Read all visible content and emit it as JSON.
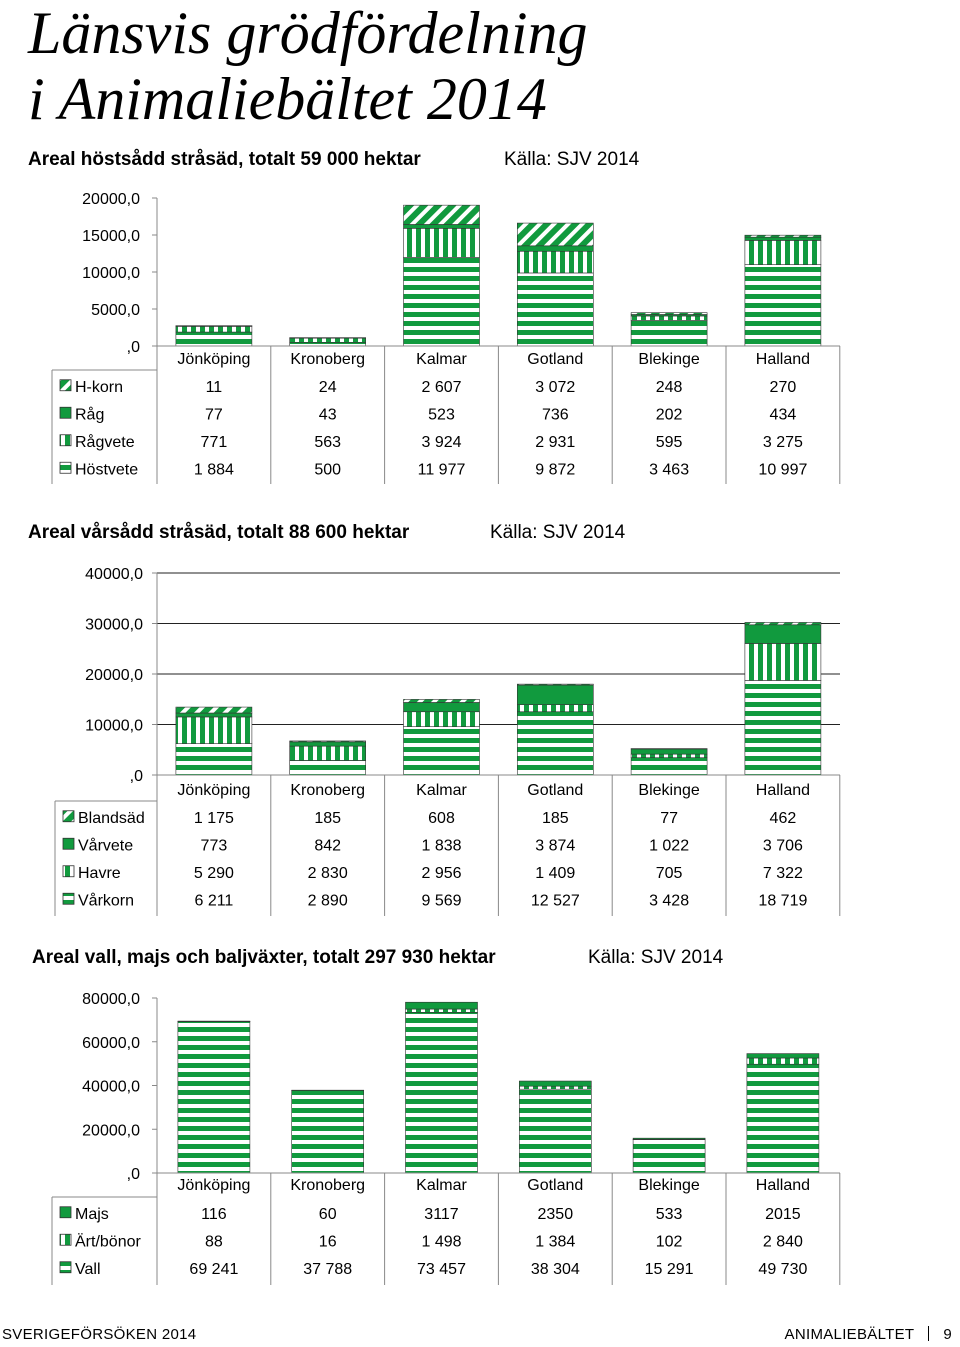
{
  "page": {
    "title_line1": "Länsvis grödfördelning",
    "title_line2": "i Animaliebältet 2014"
  },
  "footer": {
    "left": "SVERIGEFÖRSÖKEN 2014",
    "right_label": "ANIMALIEBÄLTET",
    "page_number": "9"
  },
  "colors": {
    "green": "#119a3e",
    "stripe": "#ffffff",
    "axis": "#888888",
    "grid": "#222222"
  },
  "chart_data": [
    {
      "type": "bar",
      "stacked": true,
      "title": "Areal höstsådd stråsäd, totalt 59 000 hektar",
      "source": "Källa: SJV 2014",
      "categories": [
        "Jönköping",
        "Kronoberg",
        "Kalmar",
        "Gotland",
        "Blekinge",
        "Halland"
      ],
      "ylim": [
        0,
        20000
      ],
      "yticks": [
        20000,
        15000,
        10000,
        5000,
        0
      ],
      "ytick_labels": [
        "20000,0",
        "15000,0",
        "10000,0",
        "5000,0",
        ",0"
      ],
      "grid": false,
      "legend": "data-table",
      "series": [
        {
          "name": "H-korn",
          "pattern": "diagonal",
          "values": [
            11,
            24,
            2607,
            3072,
            248,
            270
          ],
          "labels": [
            "11",
            "24",
            "2 607",
            "3 072",
            "248",
            "270"
          ]
        },
        {
          "name": "Råg",
          "pattern": "solid",
          "values": [
            77,
            43,
            523,
            736,
            202,
            434
          ],
          "labels": [
            "77",
            "43",
            "523",
            "736",
            "202",
            "434"
          ]
        },
        {
          "name": "Rågvete",
          "pattern": "vertical",
          "values": [
            771,
            563,
            3924,
            2931,
            595,
            3275
          ],
          "labels": [
            "771",
            "563",
            "3 924",
            "2 931",
            "595",
            "3 275"
          ]
        },
        {
          "name": "Höstvete",
          "pattern": "horizontal",
          "values": [
            1884,
            500,
            11977,
            9872,
            3463,
            10997
          ],
          "labels": [
            "1 884",
            "500",
            "11 977",
            "9 872",
            "3 463",
            "10 997"
          ]
        }
      ]
    },
    {
      "type": "bar",
      "stacked": true,
      "title": "Areal vårsådd stråsäd, totalt 88 600 hektar",
      "source": "Källa: SJV 2014",
      "categories": [
        "Jönköping",
        "Kronoberg",
        "Kalmar",
        "Gotland",
        "Blekinge",
        "Halland"
      ],
      "ylim": [
        0,
        40000
      ],
      "yticks": [
        40000,
        30000,
        20000,
        10000,
        0
      ],
      "ytick_labels": [
        "40000,0",
        "30000,0",
        "20000,0",
        "10000,0",
        ",0"
      ],
      "grid": true,
      "legend": "data-table",
      "series": [
        {
          "name": "Blandsäd",
          "pattern": "diagonal",
          "values": [
            1175,
            185,
            608,
            185,
            77,
            462
          ],
          "labels": [
            "1 175",
            "185",
            "608",
            "185",
            "77",
            "462"
          ]
        },
        {
          "name": "Vårvete",
          "pattern": "solid",
          "values": [
            773,
            842,
            1838,
            3874,
            1022,
            3706
          ],
          "labels": [
            "773",
            "842",
            "1 838",
            "3 874",
            "1 022",
            "3 706"
          ]
        },
        {
          "name": "Havre",
          "pattern": "vertical",
          "values": [
            5290,
            2830,
            2956,
            1409,
            705,
            7322
          ],
          "labels": [
            "5 290",
            "2 830",
            "2 956",
            "1 409",
            "705",
            "7 322"
          ]
        },
        {
          "name": "Vårkorn",
          "pattern": "horizontal",
          "values": [
            6211,
            2890,
            9569,
            12527,
            3428,
            18719
          ],
          "labels": [
            "6 211",
            "2 890",
            "9 569",
            "12 527",
            "3 428",
            "18 719"
          ]
        }
      ]
    },
    {
      "type": "bar",
      "stacked": true,
      "title": "Areal vall, majs och baljväxter, totalt 297 930 hektar",
      "source": "Källa: SJV 2014",
      "categories": [
        "Jönköping",
        "Kronoberg",
        "Kalmar",
        "Gotland",
        "Blekinge",
        "Halland"
      ],
      "ylim": [
        0,
        80000
      ],
      "yticks": [
        80000,
        60000,
        40000,
        20000,
        0
      ],
      "ytick_labels": [
        "80000,0",
        "60000,0",
        "40000,0",
        "20000,0",
        ",0"
      ],
      "grid": false,
      "legend": "data-table",
      "series": [
        {
          "name": "Majs",
          "pattern": "solid",
          "values": [
            116,
            60,
            3117,
            2350,
            533,
            2015
          ],
          "labels": [
            "116",
            "60",
            "3117",
            "2350",
            "533",
            "2015"
          ]
        },
        {
          "name": "Ärt/bönor",
          "pattern": "vertical",
          "values": [
            88,
            16,
            1498,
            1384,
            102,
            2840
          ],
          "labels": [
            "88",
            "16",
            "1 498",
            "1 384",
            "102",
            "2 840"
          ]
        },
        {
          "name": "Vall",
          "pattern": "horizontal",
          "values": [
            69241,
            37788,
            73457,
            38304,
            15291,
            49730
          ],
          "labels": [
            "69 241",
            "37 788",
            "73 457",
            "38 304",
            "15 291",
            "49 730"
          ]
        }
      ]
    }
  ]
}
